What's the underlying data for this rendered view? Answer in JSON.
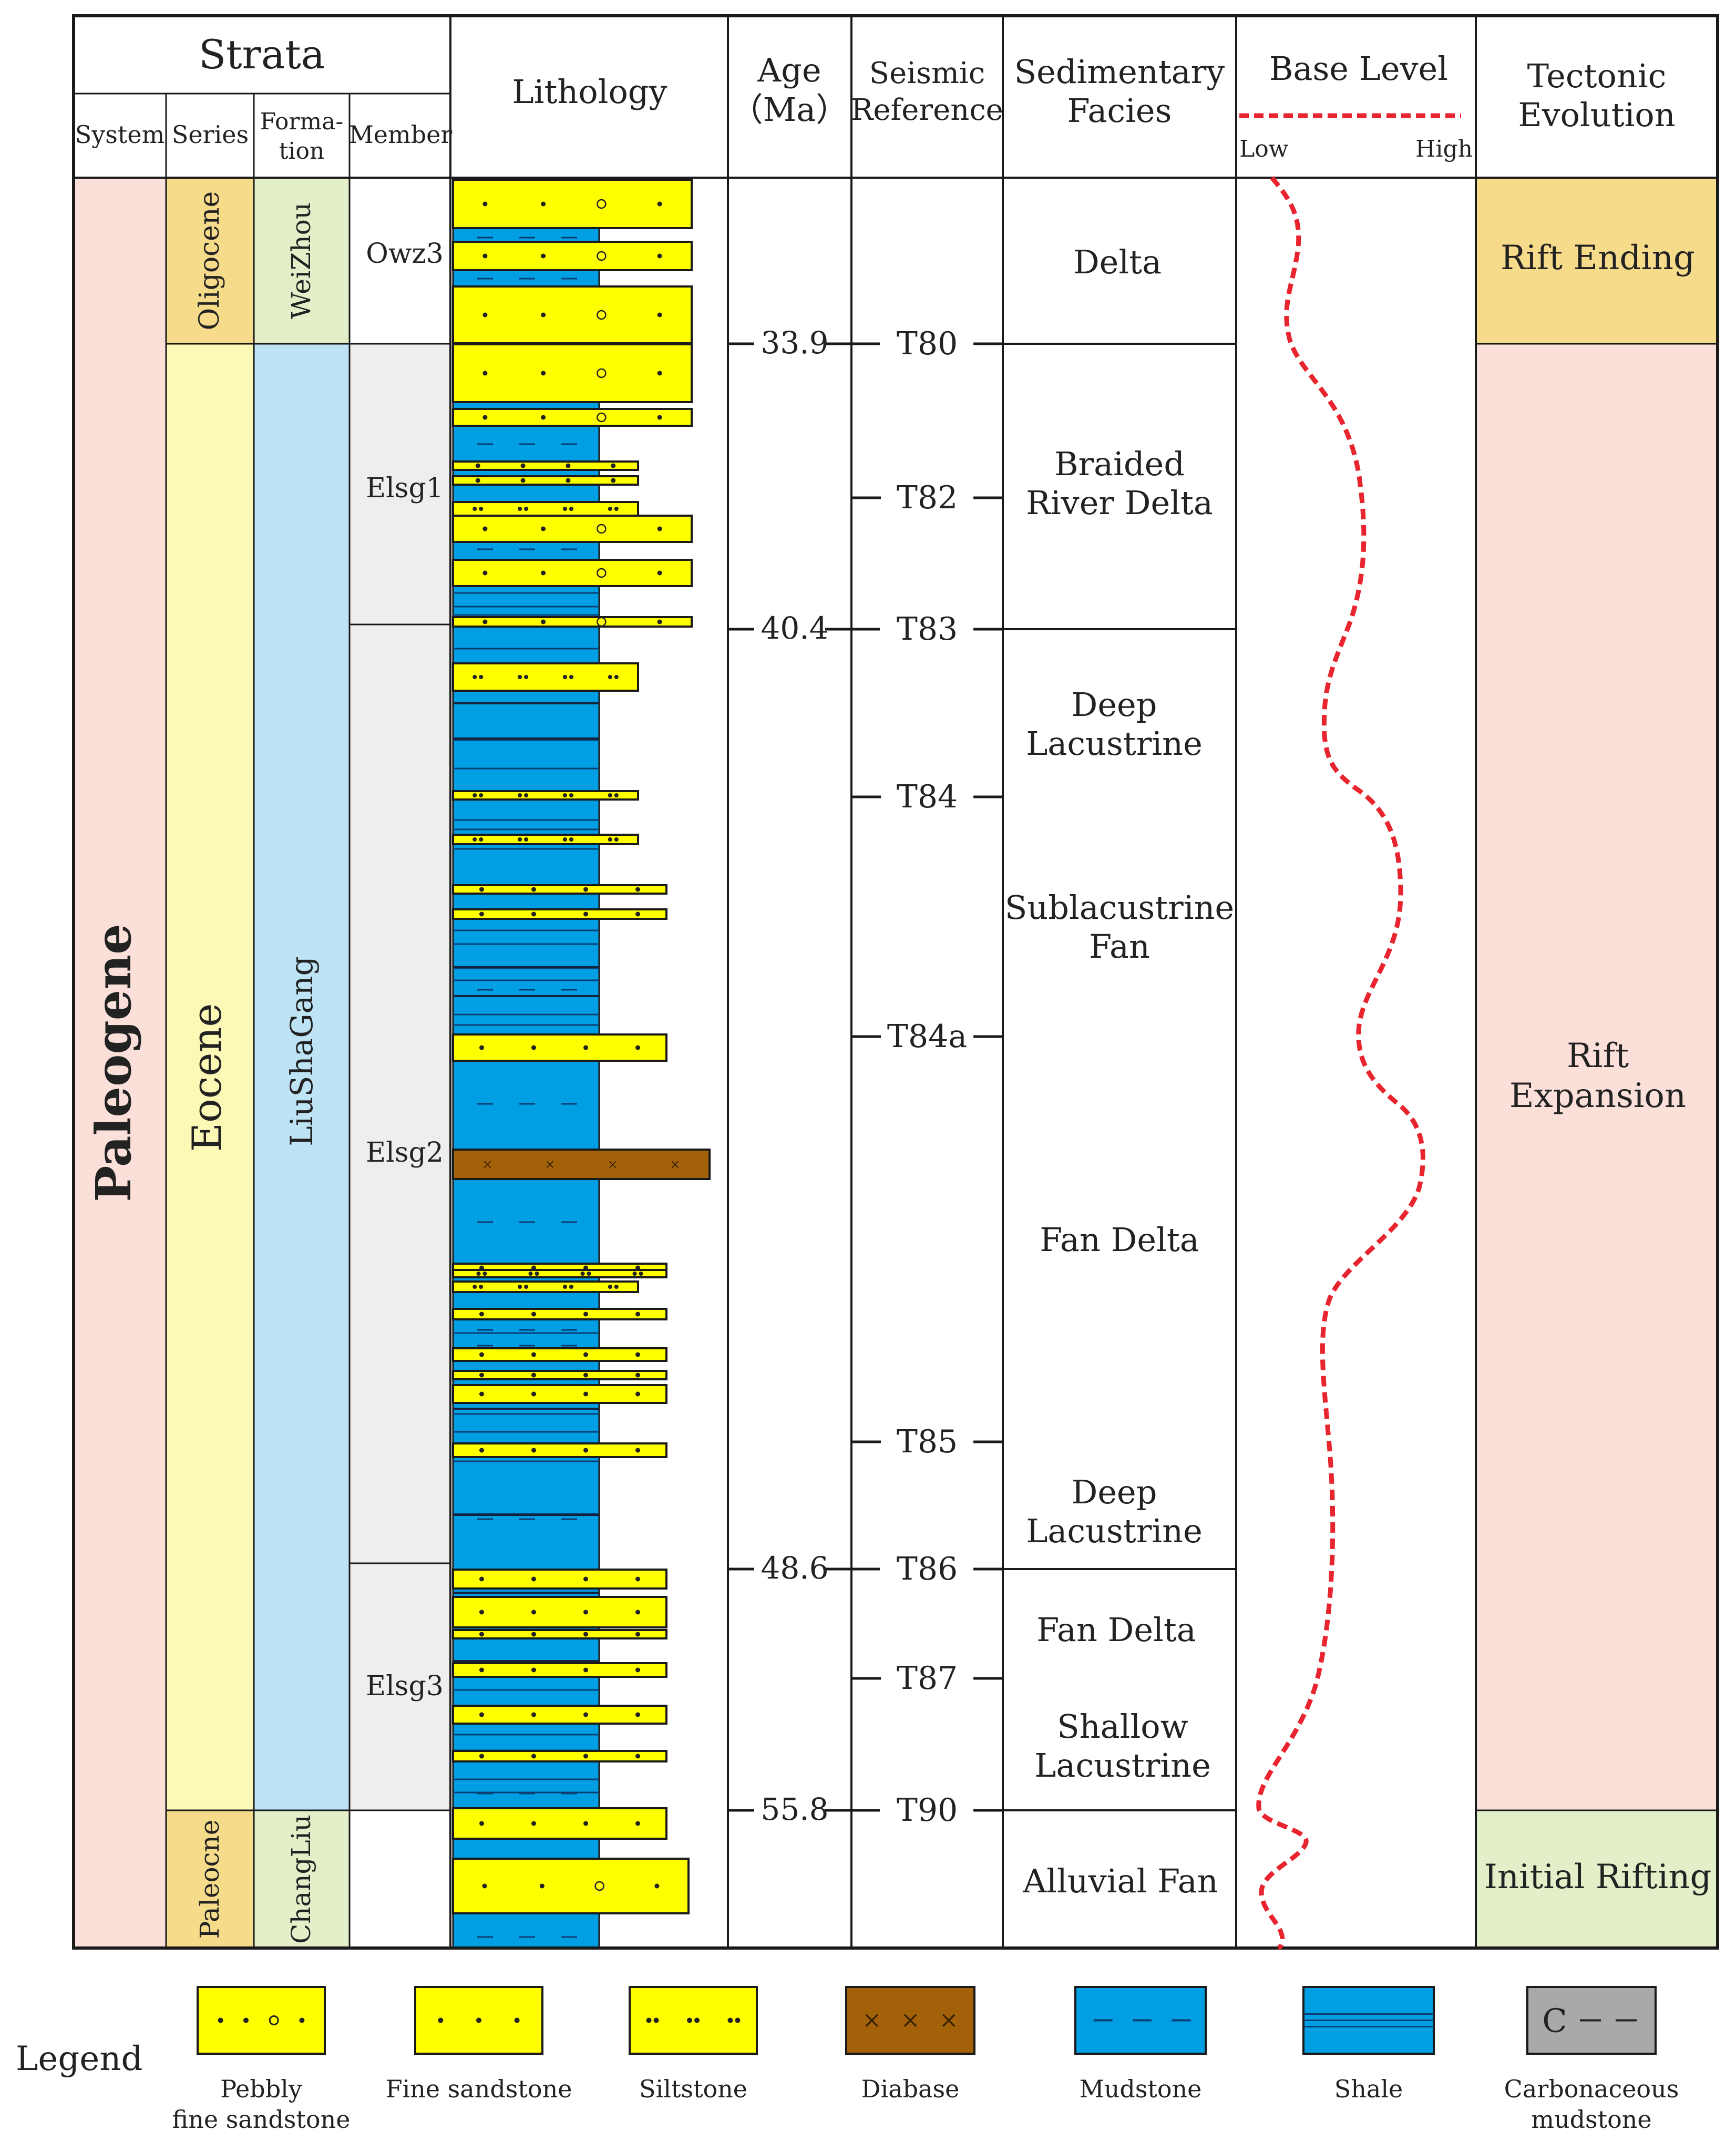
{
  "headers": {
    "strata": "Strata",
    "system": "System",
    "series": "Series",
    "formation": [
      "Forma-",
      "tion"
    ],
    "member": "Member",
    "lithology": "Lithology",
    "age": [
      "Age",
      "（Ma）"
    ],
    "seismic": [
      "Seismic",
      "Reference"
    ],
    "facies": [
      "Sedimentary",
      "Facies"
    ],
    "base_level": "Base Level",
    "base_low": "Low",
    "base_high": "High",
    "tectonic": [
      "Tectonic",
      "Evolution"
    ]
  },
  "system": {
    "name": "Paleogene",
    "color": "#fbe0da"
  },
  "series": [
    {
      "name": "Oligocene",
      "color": "#f6db8b"
    },
    {
      "name": "Eocene",
      "color": "#fcf8b6"
    },
    {
      "name": "Paleocne",
      "color": "#f6db8b"
    }
  ],
  "formations": [
    {
      "name": "WeiZhou",
      "color": "#e2efc9"
    },
    {
      "name": "LiuShaGang",
      "color": "#bde3f4"
    },
    {
      "name": "ChangLiu",
      "color": "#e2efc9"
    }
  ],
  "members": [
    {
      "name": "Owz3",
      "color": "#ffffff"
    },
    {
      "name": "Elsg1",
      "color": "#eeeeed"
    },
    {
      "name": "Elsg2",
      "color": "#eeeeed"
    },
    {
      "name": "Elsg3",
      "color": "#eeeeed"
    },
    {
      "name": "",
      "color": "#ffffff"
    }
  ],
  "ages": [
    "33.9",
    "40.4",
    "48.6",
    "55.8"
  ],
  "seismic": [
    "T80",
    "T82",
    "T83",
    "T84",
    "T84a",
    "T85",
    "T86",
    "T87",
    "T90"
  ],
  "facies": [
    [
      "Delta"
    ],
    [
      "Braided",
      "River Delta"
    ],
    [
      "Deep",
      "Lacustrine"
    ],
    [
      "Sublacustrine",
      "Fan"
    ],
    [
      "Fan Delta"
    ],
    [
      "Deep",
      "Lacustrine"
    ],
    [
      "Fan Delta"
    ],
    [
      "Shallow",
      "Lacustrine"
    ],
    [
      "Alluvial Fan"
    ]
  ],
  "tectonics": [
    {
      "name": [
        "Rift Ending"
      ],
      "color": "#f6db8b"
    },
    {
      "name": [
        "Rift",
        "Expansion"
      ],
      "color": "#fbe0da"
    },
    {
      "name": [
        "Initial Rifting"
      ],
      "color": "#e2efc9"
    }
  ],
  "legend": {
    "title": "Legend",
    "items": [
      {
        "label": [
          "Pebbly",
          "fine sandstone"
        ],
        "pattern": "pebbly"
      },
      {
        "label": [
          "Fine sandstone"
        ],
        "pattern": "fine"
      },
      {
        "label": [
          "Siltstone"
        ],
        "pattern": "silt"
      },
      {
        "label": [
          "Diabase"
        ],
        "pattern": "diabase"
      },
      {
        "label": [
          "Mudstone"
        ],
        "pattern": "mud"
      },
      {
        "label": [
          "Shale"
        ],
        "pattern": "shale"
      },
      {
        "label": [
          "Carbonaceous",
          "mudstone"
        ],
        "pattern": "carb",
        "symbol": "C"
      }
    ]
  },
  "colors": {
    "sand": "#ffff00",
    "mud": "#009fe3",
    "diabase": "#a3620a",
    "carbonaceous": "#a9a9a9",
    "base_level_curve": "#e8252e"
  }
}
